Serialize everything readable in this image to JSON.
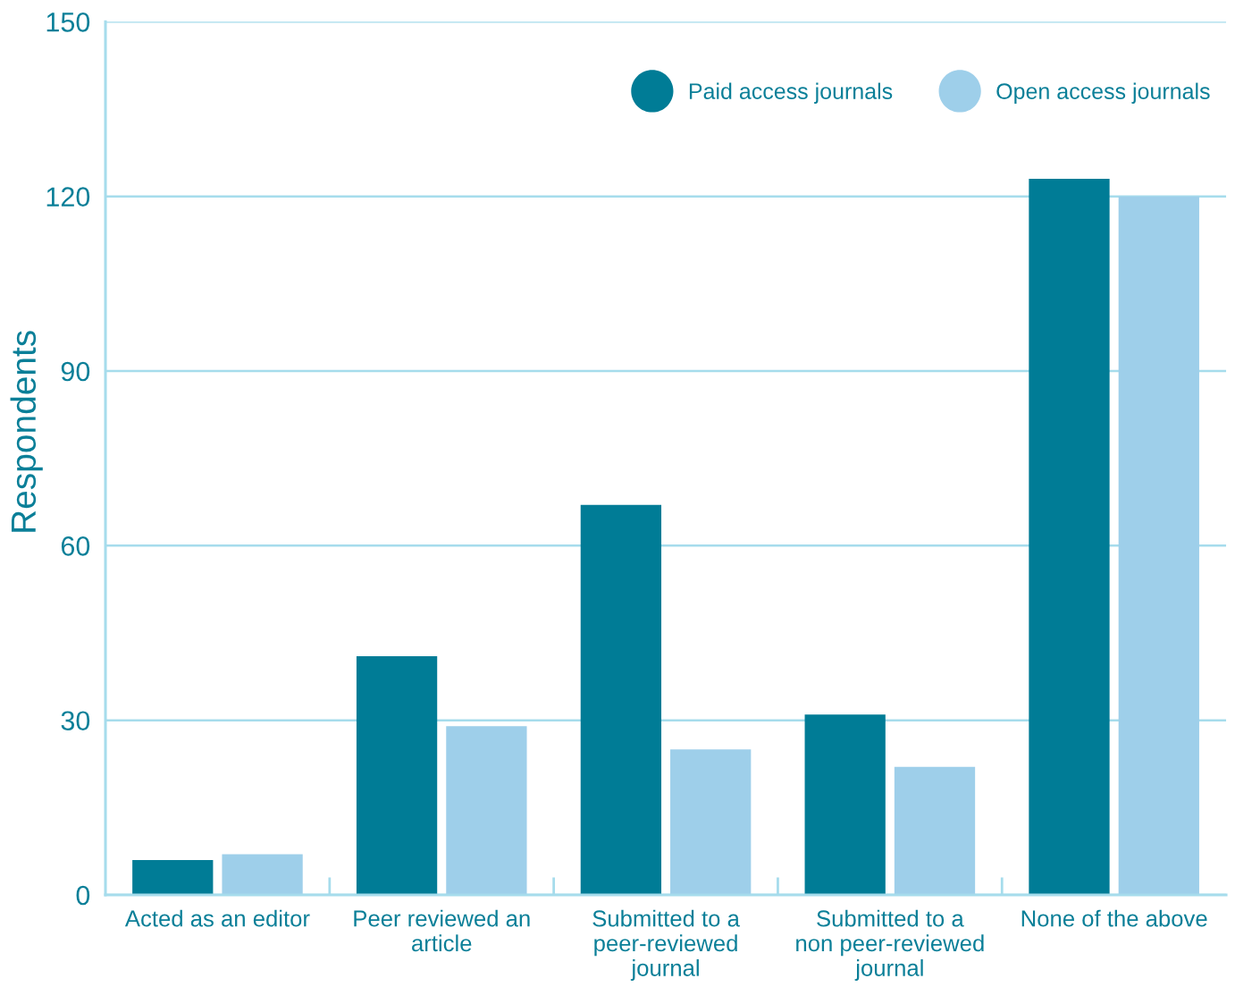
{
  "chart_data": {
    "type": "bar",
    "ylabel": "Respondents",
    "categories": [
      "Acted as an editor",
      "Peer reviewed an\narticle",
      "Submitted to a\npeer-reviewed\njournal",
      "Submitted to a\nnon peer-reviewed\njournal",
      "None of the above"
    ],
    "series": [
      {
        "name": "Paid access journals",
        "color": "#007c96",
        "values": [
          6,
          41,
          67,
          31,
          123
        ]
      },
      {
        "name": "Open access journals",
        "color": "#9ecfea",
        "values": [
          7,
          29,
          25,
          22,
          120
        ]
      }
    ],
    "ylim": [
      0,
      150
    ],
    "yticks": [
      0,
      30,
      60,
      90,
      120,
      150
    ],
    "grid": "y",
    "legend": "top right"
  }
}
